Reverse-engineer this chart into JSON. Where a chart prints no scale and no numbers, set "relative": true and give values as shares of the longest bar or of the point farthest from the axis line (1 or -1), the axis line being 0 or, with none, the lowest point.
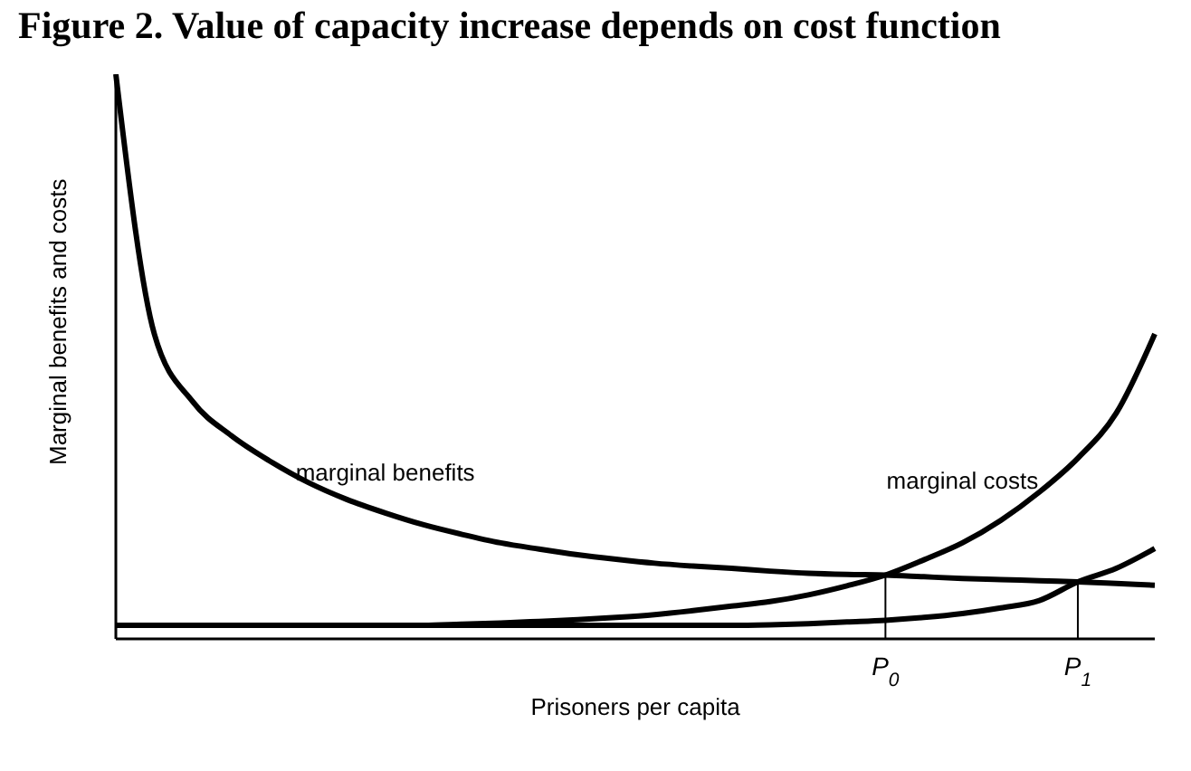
{
  "chart_data": {
    "type": "line",
    "title": "Figure 2. Value of capacity increase depends on cost function",
    "xlabel": "Prisoners per capita",
    "ylabel": "Marginal benefits and costs",
    "relative": true,
    "grid": false,
    "legend": false,
    "marker": "none",
    "line_style": "solid",
    "categories": [
      null,
      null,
      null,
      null,
      null,
      null,
      null,
      null,
      null,
      null,
      null,
      null,
      null,
      null,
      null,
      null,
      null,
      null,
      null,
      null,
      "P$_{0}$",
      null,
      null,
      null,
      null,
      "P$_{1}$",
      null,
      null
    ],
    "series": [
      {
        "name": "marginal benefits",
        "color": "#000000",
        "values": [
          1.0,
          0.54,
          0.42,
          0.36,
          0.315,
          0.277,
          0.247,
          0.223,
          0.202,
          0.185,
          0.17,
          0.159,
          0.149,
          0.141,
          0.134,
          0.129,
          0.125,
          0.12,
          0.116,
          0.114,
          0.113,
          0.11,
          0.107,
          0.105,
          0.103,
          0.101,
          0.098,
          0.095
        ]
      },
      {
        "name": "marginal costs",
        "color": "#000000",
        "values": [
          0.024,
          0.024,
          0.024,
          0.024,
          0.024,
          0.024,
          0.024,
          0.024,
          0.024,
          0.026,
          0.028,
          0.031,
          0.034,
          0.038,
          0.043,
          0.05,
          0.058,
          0.066,
          0.078,
          0.094,
          0.113,
          0.14,
          0.17,
          0.21,
          0.26,
          0.32,
          0.4,
          0.54
        ]
      },
      {
        "color": "#000000",
        "values": [
          0.024,
          0.024,
          0.024,
          0.024,
          0.024,
          0.024,
          0.024,
          0.024,
          0.024,
          0.024,
          0.024,
          0.024,
          0.024,
          0.024,
          0.024,
          0.024,
          0.024,
          0.025,
          0.027,
          0.03,
          0.033,
          0.038,
          0.045,
          0.055,
          0.068,
          0.101,
          0.125,
          0.16
        ]
      }
    ],
    "ref_lines": [
      {
        "axis": "x",
        "value": "P$_{0}$",
        "color": "#000000"
      },
      {
        "axis": "x",
        "value": "P$_{1}$",
        "color": "#000000"
      }
    ]
  }
}
